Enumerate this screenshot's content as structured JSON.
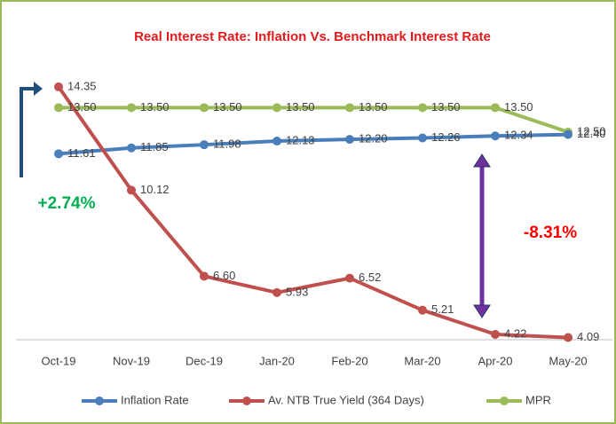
{
  "chart_data": {
    "type": "line",
    "title": "Real Interest Rate: Inflation Vs. Benchmark Interest Rate",
    "categories": [
      "Oct-19",
      "Nov-19",
      "Dec-19",
      "Jan-20",
      "Feb-20",
      "Mar-20",
      "Apr-20",
      "May-20"
    ],
    "series": [
      {
        "name": "Inflation Rate",
        "color": "#4a7ebb",
        "values": [
          11.61,
          11.85,
          11.98,
          12.13,
          12.2,
          12.26,
          12.34,
          12.4
        ],
        "value_labels": [
          "11.61",
          "11.85",
          "11.98",
          "12.13",
          "12.20",
          "12.26",
          "12.34",
          "12.40"
        ]
      },
      {
        "name": "Av. NTB True Yield (364 Days)",
        "color": "#c0504d",
        "values": [
          14.35,
          10.12,
          6.6,
          5.93,
          6.52,
          5.21,
          4.22,
          4.09
        ],
        "value_labels": [
          "14.35",
          "10.12",
          "6.60",
          "5.93",
          "6.52",
          "5.21",
          "4.22",
          "4.09"
        ]
      },
      {
        "name": "MPR",
        "color": "#9bbb59",
        "values": [
          13.5,
          13.5,
          13.5,
          13.5,
          13.5,
          13.5,
          13.5,
          12.5
        ],
        "value_labels": [
          "13.50",
          "13.50",
          "13.50",
          "13.50",
          "13.50",
          "13.50",
          "13.50",
          "12.50"
        ]
      }
    ],
    "ylim": [
      4,
      15
    ],
    "annotations": [
      {
        "text": "+2.74%",
        "color": "#00b050"
      },
      {
        "text": "-8.31%",
        "color": "#ff0000"
      }
    ]
  }
}
